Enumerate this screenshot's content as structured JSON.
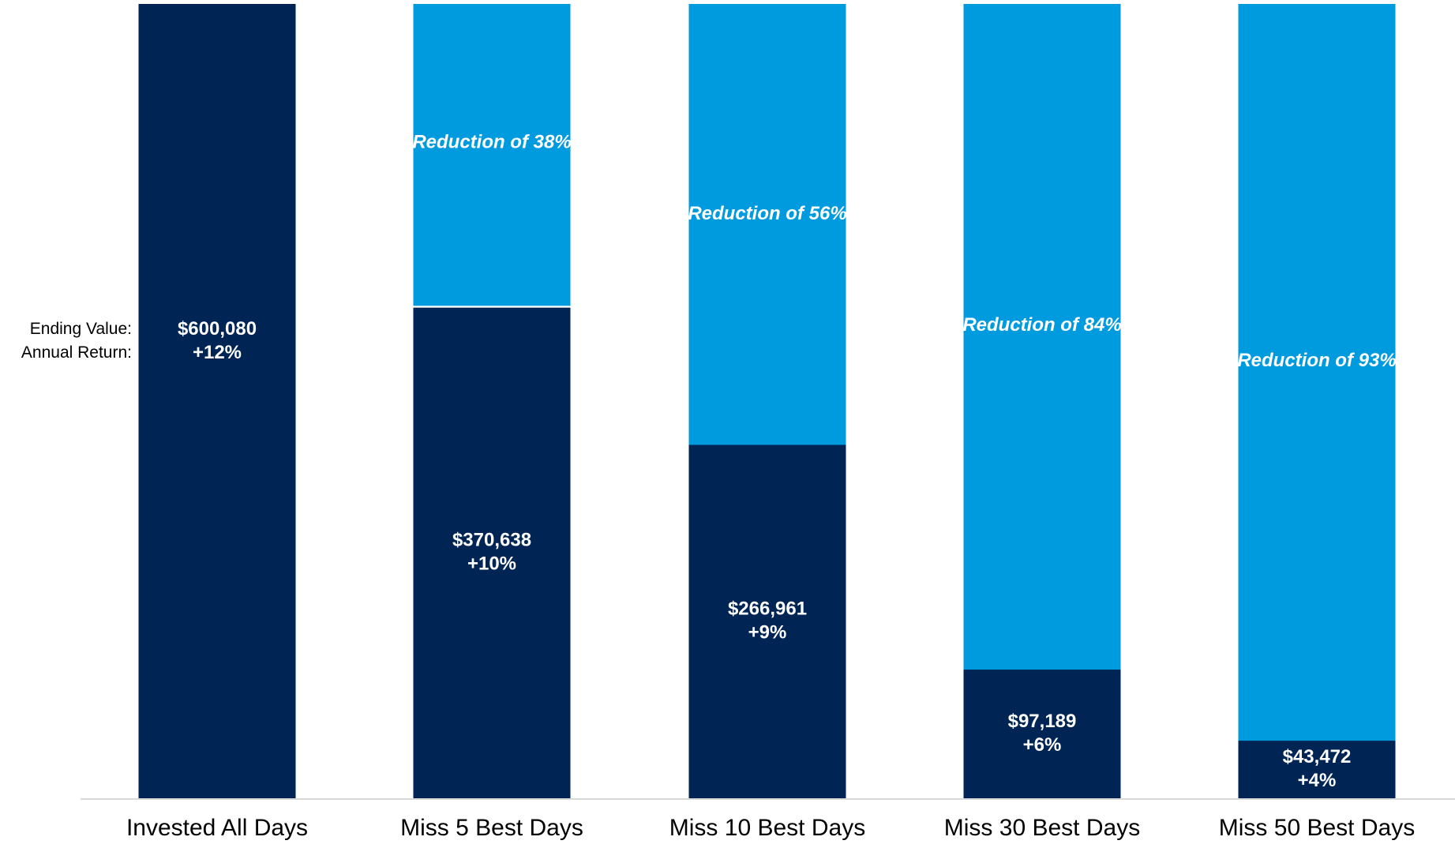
{
  "chart_data": {
    "type": "bar",
    "stacked": true,
    "categories": [
      "Invested All Days",
      "Miss 5 Best Days",
      "Miss 10 Best Days",
      "Miss 30 Best Days",
      "Miss 50 Best Days"
    ],
    "row_labels": [
      "Ending Value:",
      "Annual Return:"
    ],
    "ylim": [
      0,
      600080
    ],
    "y2lim": [
      100,
      0
    ],
    "series": [
      {
        "color": "#002554",
        "values": [
          600080,
          370638,
          266961,
          97189,
          43472
        ],
        "value_labels": [
          "$600,080",
          "$370,638",
          "$266,961",
          "$97,189",
          "$43,472"
        ]
      },
      {
        "color": "#009ade",
        "axis": "y2",
        "values": [
          null,
          38,
          56,
          84,
          93
        ],
        "value_labels": [
          null,
          "Reduction of 38%",
          "Reduction of 56%",
          "Reduction of 84%",
          "Reduction of 93%"
        ]
      }
    ],
    "annual_return": {
      "values": [
        12,
        10,
        9,
        6,
        4
      ],
      "value_labels": [
        "+12%",
        "+10%",
        "+9%",
        "+6%",
        "+4%"
      ]
    }
  }
}
